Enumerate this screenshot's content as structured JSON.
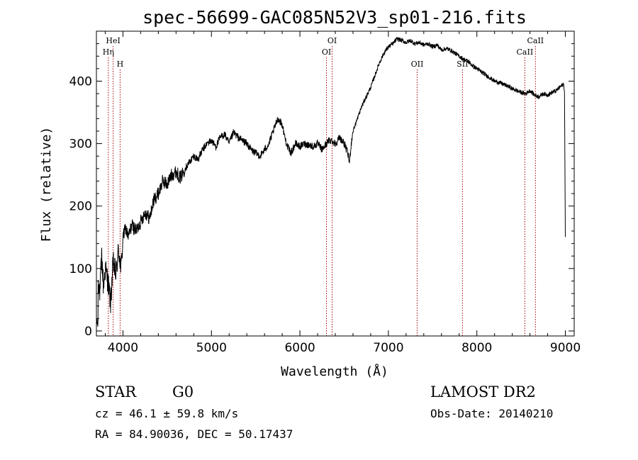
{
  "chart_data": {
    "type": "line",
    "title": "spec-56699-GAC085N52V3_sp01-216.fits",
    "xlabel": "Wavelength (Å)",
    "ylabel": "Flux (relative)",
    "xlim": [
      3700,
      9100
    ],
    "ylim": [
      -8,
      480
    ],
    "x_ticks": [
      4000,
      5000,
      6000,
      7000,
      8000,
      9000
    ],
    "y_ticks": [
      0,
      100,
      200,
      300,
      400
    ],
    "x_tick_labels": [
      "4000",
      "5000",
      "6000",
      "7000",
      "8000",
      "9000"
    ],
    "y_tick_labels": [
      "0",
      "100",
      "200",
      "300",
      "400"
    ],
    "series": [
      {
        "name": "spectrum",
        "x": [
          3700,
          3720,
          3740,
          3760,
          3780,
          3800,
          3830,
          3860,
          3890,
          3920,
          3950,
          3980,
          4000,
          4030,
          4060,
          4100,
          4150,
          4200,
          4250,
          4300,
          4350,
          4400,
          4450,
          4500,
          4550,
          4600,
          4650,
          4700,
          4750,
          4800,
          4850,
          4900,
          4950,
          5000,
          5050,
          5100,
          5150,
          5200,
          5250,
          5300,
          5350,
          5400,
          5450,
          5500,
          5550,
          5600,
          5650,
          5700,
          5750,
          5780,
          5800,
          5830,
          5860,
          5900,
          5950,
          6000,
          6050,
          6100,
          6150,
          6200,
          6250,
          6300,
          6330,
          6360,
          6400,
          6450,
          6500,
          6540,
          6560,
          6580,
          6600,
          6650,
          6700,
          6750,
          6800,
          6850,
          6900,
          6950,
          7000,
          7050,
          7100,
          7150,
          7200,
          7250,
          7300,
          7350,
          7400,
          7450,
          7500,
          7550,
          7600,
          7650,
          7700,
          7750,
          7800,
          7850,
          7900,
          7950,
          8000,
          8050,
          8100,
          8150,
          8200,
          8250,
          8300,
          8350,
          8400,
          8450,
          8500,
          8550,
          8600,
          8650,
          8700,
          8750,
          8800,
          8850,
          8900,
          8950,
          8980,
          8990,
          9000
        ],
        "y": [
          20,
          85,
          60,
          120,
          70,
          100,
          80,
          45,
          110,
          90,
          130,
          100,
          150,
          165,
          150,
          170,
          160,
          175,
          190,
          180,
          210,
          220,
          240,
          235,
          250,
          255,
          245,
          260,
          270,
          280,
          275,
          290,
          300,
          305,
          295,
          310,
          315,
          300,
          318,
          310,
          305,
          300,
          290,
          285,
          280,
          290,
          300,
          320,
          340,
          335,
          330,
          310,
          295,
          285,
          300,
          295,
          300,
          298,
          295,
          300,
          290,
          300,
          305,
          305,
          300,
          310,
          300,
          285,
          270,
          300,
          320,
          340,
          360,
          375,
          390,
          410,
          430,
          445,
          455,
          460,
          468,
          465,
          462,
          465,
          460,
          462,
          458,
          460,
          455,
          458,
          450,
          452,
          450,
          445,
          440,
          435,
          432,
          425,
          420,
          415,
          410,
          405,
          400,
          398,
          395,
          392,
          388,
          385,
          382,
          380,
          385,
          378,
          375,
          380,
          378,
          382,
          385,
          392,
          395,
          385,
          150
        ]
      }
    ],
    "line_markers": [
      {
        "name": "HeI",
        "x": 3889,
        "label_position": "upper"
      },
      {
        "name": "Hη",
        "x": 3835,
        "label_position": "middle"
      },
      {
        "name": "H",
        "x": 3968,
        "label_position": "lower"
      },
      {
        "name": "OI",
        "x": 6300,
        "label_position": "middle"
      },
      {
        "name": "OI",
        "x": 6364,
        "label_position": "upper"
      },
      {
        "name": "OII",
        "x": 7325,
        "label_position": "lower"
      },
      {
        "name": "SII",
        "x": 7837,
        "label_position": "lower"
      },
      {
        "name": "CaII",
        "x": 8542,
        "label_position": "middle"
      },
      {
        "name": "CaII",
        "x": 8662,
        "label_position": "upper"
      }
    ]
  },
  "info": {
    "class": "STAR",
    "subclass": "G0",
    "survey": "LAMOST DR2",
    "cz": "cz = 46.1 ± 59.8 km/s",
    "obs_date": "Obs-Date: 20140210",
    "coords": "RA =  84.90036, DEC =  50.17437"
  },
  "colors": {
    "spectrum": "#000000",
    "marker_line": "#aa0000",
    "axes": "#000000"
  }
}
